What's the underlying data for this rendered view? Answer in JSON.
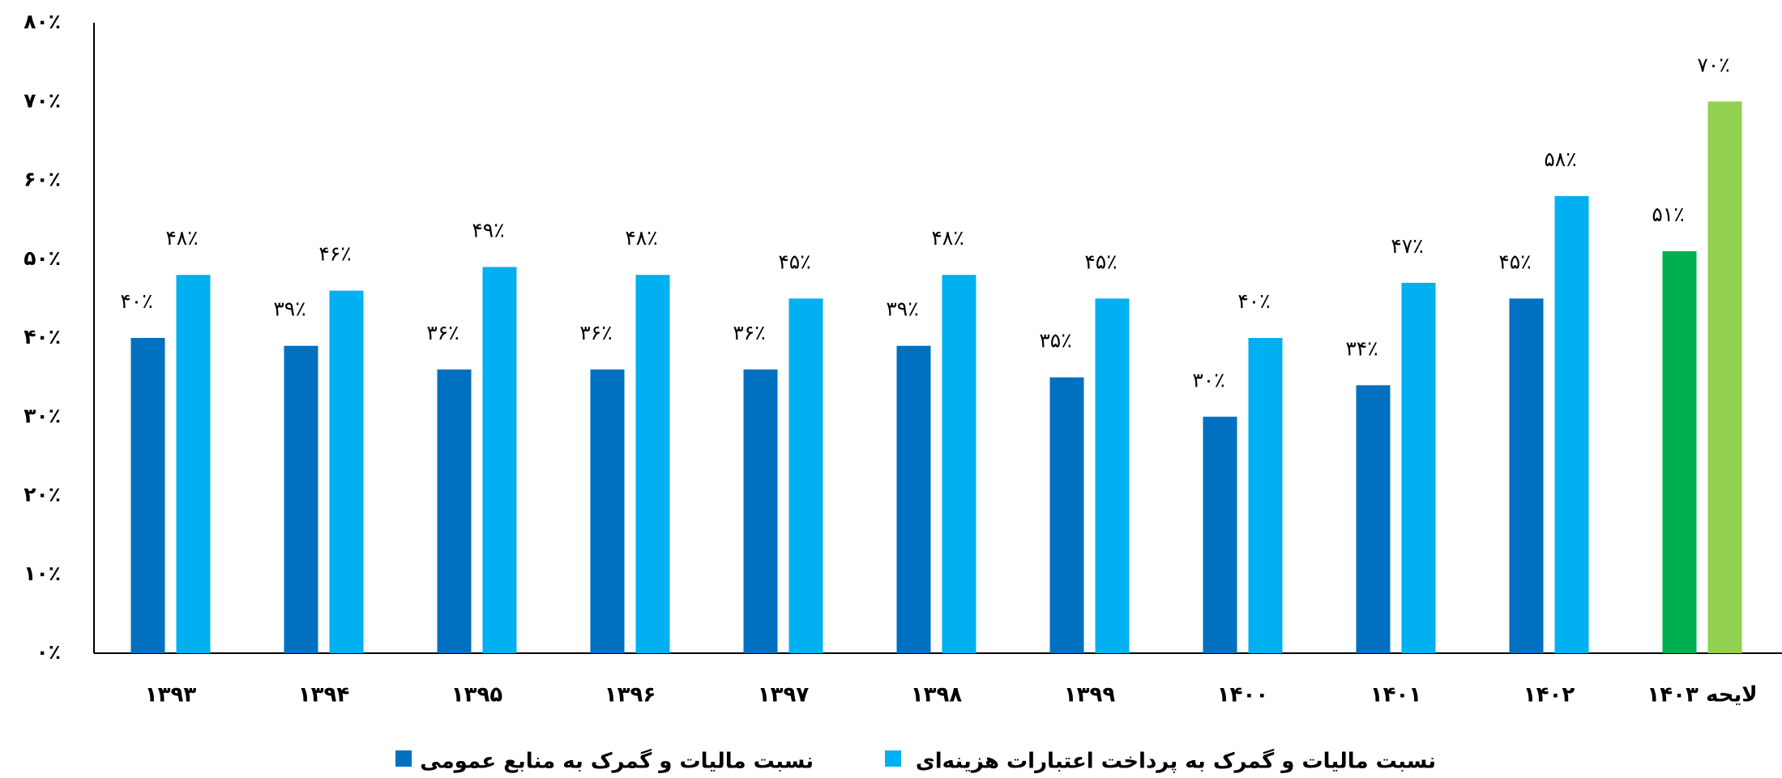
{
  "chart_data": {
    "type": "bar",
    "categories": [
      "۱۳۹۳",
      "۱۳۹۴",
      "۱۳۹۵",
      "۱۳۹۶",
      "۱۳۹۷",
      "۱۳۹۸",
      "۱۳۹۹",
      "۱۴۰۰",
      "۱۴۰۱",
      "۱۴۰۲",
      "لایحه ۱۴۰۳"
    ],
    "series": [
      {
        "name": "نسبت مالیات و گمرک به منابع عمومی",
        "color": "#0070c0",
        "colors": [
          "#0070c0",
          "#0070c0",
          "#0070c0",
          "#0070c0",
          "#0070c0",
          "#0070c0",
          "#0070c0",
          "#0070c0",
          "#0070c0",
          "#0070c0",
          "#00b050"
        ],
        "values": [
          40,
          39,
          36,
          36,
          36,
          39,
          35,
          30,
          34,
          45,
          51
        ],
        "value_labels": [
          "۴۰٪",
          "۳۹٪",
          "۳۶٪",
          "۳۶٪",
          "۳۶٪",
          "۳۹٪",
          "۳۵٪",
          "۳۰٪",
          "۳۴٪",
          "۴۵٪",
          "۵۱٪"
        ]
      },
      {
        "name": "نسبت مالیات و گمرک به پرداخت اعتبارات هزینه‌ای",
        "color": "#00b0f0",
        "colors": [
          "#00b0f0",
          "#00b0f0",
          "#00b0f0",
          "#00b0f0",
          "#00b0f0",
          "#00b0f0",
          "#00b0f0",
          "#00b0f0",
          "#00b0f0",
          "#00b0f0",
          "#92d050"
        ],
        "values": [
          48,
          46,
          49,
          48,
          45,
          48,
          45,
          40,
          47,
          58,
          70
        ],
        "value_labels": [
          "۴۸٪",
          "۴۶٪",
          "۴۹٪",
          "۴۸٪",
          "۴۵٪",
          "۴۸٪",
          "۴۵٪",
          "۴۰٪",
          "۴۷٪",
          "۵۸٪",
          "۷۰٪"
        ]
      }
    ],
    "ylim": [
      0,
      80
    ],
    "yticks": [
      {
        "value": 0,
        "label": "۰٪"
      },
      {
        "value": 10,
        "label": "۱۰٪"
      },
      {
        "value": 20,
        "label": "۲۰٪"
      },
      {
        "value": 30,
        "label": "۳۰٪"
      },
      {
        "value": 40,
        "label": "۴۰٪"
      },
      {
        "value": 50,
        "label": "۵۰٪"
      },
      {
        "value": 60,
        "label": "۶۰٪"
      },
      {
        "value": 70,
        "label": "۷۰٪"
      },
      {
        "value": 80,
        "label": "۸۰٪"
      }
    ],
    "grid": false
  }
}
